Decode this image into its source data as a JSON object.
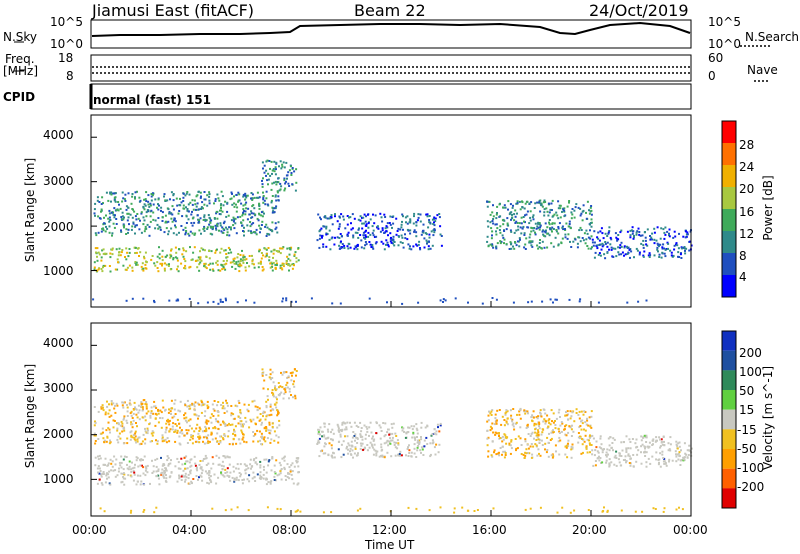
{
  "header": {
    "station": "Jiamusi East (fitACF)",
    "beam": "Beam 22",
    "date": "24/Oct/2019"
  },
  "strip": {
    "nsky_label": "N.Sky",
    "nsky_ticks": [
      "10^5",
      "10^0"
    ],
    "nsearch_label": "N.Search",
    "nsearch_ticks": [
      "10^5",
      "10^0"
    ],
    "freq_label_1": "Freq.",
    "freq_label_2": "[MHz]",
    "freq_ticks": [
      "18",
      "8"
    ],
    "nave_label": "Nave",
    "nave_ticks": [
      "60",
      "0"
    ],
    "cpid_label": "CPID",
    "cpid_value": "normal (fast) 151"
  },
  "xaxis": {
    "label": "Time UT",
    "ticks": [
      "00:00",
      "04:00",
      "08:00",
      "12:00",
      "16:00",
      "20:00",
      "00:00"
    ]
  },
  "chart_data": [
    {
      "type": "heatmap",
      "title": "",
      "quantity": "Power [dB]",
      "ylabel": "Slant Range [km]",
      "yticks": [
        "4000",
        "3000",
        "2000",
        "1000"
      ],
      "ylim": [
        180,
        4500
      ],
      "xlim_hours": [
        0,
        24
      ],
      "colorbar_ticks": [
        "28",
        "24",
        "20",
        "16",
        "12",
        "8",
        "4"
      ],
      "colorbar_colors": [
        "#0000ff",
        "#1f4fbf",
        "#2f8a8a",
        "#3faa5a",
        "#a8c840",
        "#f0b000",
        "#ff7000",
        "#ff0000"
      ],
      "regions": [
        {
          "t": [
            0.1,
            8.3
          ],
          "r": [
            1000,
            1550
          ],
          "level": "strong"
        },
        {
          "t": [
            0.1,
            7.5
          ],
          "r": [
            1800,
            2800
          ],
          "level": "moderate"
        },
        {
          "t": [
            6.8,
            8.2
          ],
          "r": [
            2800,
            3500
          ],
          "level": "moderate"
        },
        {
          "t": [
            9.0,
            14.0
          ],
          "r": [
            1500,
            2300
          ],
          "level": "weak"
        },
        {
          "t": [
            15.8,
            20.0
          ],
          "r": [
            1500,
            2600
          ],
          "level": "moderate"
        },
        {
          "t": [
            20.0,
            24.0
          ],
          "r": [
            1300,
            2000
          ],
          "level": "weak"
        }
      ]
    },
    {
      "type": "heatmap",
      "title": "",
      "quantity": "Velocity [m s^-1]",
      "ylabel": "Slant Range [km]",
      "yticks": [
        "4000",
        "3000",
        "2000",
        "1000"
      ],
      "ylim": [
        180,
        4500
      ],
      "xlim_hours": [
        0,
        24
      ],
      "colorbar_ticks": [
        "200",
        "100",
        "50",
        "15",
        "-15",
        "-50",
        "-100",
        "-200"
      ],
      "colorbar_colors": [
        "#e00000",
        "#ff6000",
        "#ff9f00",
        "#f0c020",
        "#c8c8c0",
        "#60d040",
        "#2f8a5a",
        "#1f50a0",
        "#1030c0"
      ],
      "regions": [
        {
          "t": [
            0.1,
            8.3
          ],
          "r": [
            900,
            1550
          ],
          "level": "ground"
        },
        {
          "t": [
            0.1,
            7.5
          ],
          "r": [
            1800,
            2800
          ],
          "level": "negative"
        },
        {
          "t": [
            6.8,
            8.2
          ],
          "r": [
            2800,
            3500
          ],
          "level": "negative"
        },
        {
          "t": [
            9.0,
            14.0
          ],
          "r": [
            1500,
            2300
          ],
          "level": "ground"
        },
        {
          "t": [
            15.8,
            20.0
          ],
          "r": [
            1500,
            2600
          ],
          "level": "negative"
        },
        {
          "t": [
            20.0,
            24.0
          ],
          "r": [
            1300,
            2000
          ],
          "level": "ground"
        }
      ]
    }
  ]
}
